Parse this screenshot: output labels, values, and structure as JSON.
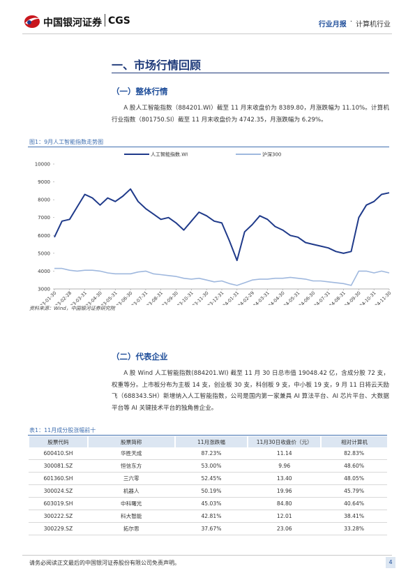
{
  "header": {
    "logo_cn": "中国银河证券",
    "logo_en": "CGS",
    "report_type": "行业月报",
    "separator": "·",
    "industry": "计算机行业"
  },
  "section_title": "一、市场行情回顾",
  "subsection1": {
    "title": "（一）整体行情",
    "paragraph": "A 股人工智能指数（884201.WI）截至 11 月末收盘价为 8389.80，月涨跌幅为 11.10%。计算机行业指数（801750.SI）截至 11 月末收盘价为 4742.35，月涨跌幅为 6.29%。"
  },
  "figure": {
    "caption": "图1：9月人工智能指数走势图",
    "source": "资料来源：Wind，中国银河证券研究院"
  },
  "chart_data": {
    "type": "line",
    "categories": [
      "2023-01-30",
      null,
      "2023-02-28",
      null,
      "2023-03-31",
      null,
      "2023-04-30",
      null,
      "2023-05-31",
      null,
      "2023-06-30",
      null,
      "2023-07-31",
      null,
      "2023-08-31",
      null,
      "2023-09-30",
      null,
      "2023-10-31",
      null,
      "2023-11-30",
      null,
      "2023-12-31",
      null,
      "2024-01-31",
      null,
      "2024-02-29",
      null,
      "2024-03-31",
      null,
      "2024-04-30",
      null,
      "2024-05-31",
      null,
      "2024-06-30",
      null,
      "2024-07-31",
      null,
      "2024-08-31",
      null,
      "2024-09-30",
      null,
      "2024-10-31",
      null,
      "2024-11-30"
    ],
    "series": [
      {
        "name": "人工智能指数.WI",
        "color": "#1f3a8a",
        "values": [
          5900,
          6800,
          6900,
          7600,
          8300,
          8100,
          7700,
          8100,
          7900,
          8200,
          8600,
          7900,
          7500,
          7200,
          6900,
          7000,
          6700,
          6300,
          6800,
          7300,
          7100,
          6800,
          6700,
          5700,
          4600,
          6200,
          6600,
          7100,
          6900,
          6500,
          6300,
          6000,
          5900,
          5600,
          5500,
          5400,
          5300,
          5100,
          5000,
          5100,
          7000,
          7700,
          7900,
          8300,
          8390
        ]
      },
      {
        "name": "沪深300",
        "color": "#9fb8de",
        "values": [
          4150,
          4150,
          4050,
          4000,
          4050,
          4050,
          4000,
          3900,
          3850,
          3850,
          3850,
          3950,
          4000,
          3850,
          3800,
          3750,
          3700,
          3600,
          3550,
          3600,
          3500,
          3400,
          3450,
          3300,
          3200,
          3350,
          3500,
          3550,
          3550,
          3600,
          3600,
          3650,
          3600,
          3550,
          3450,
          3450,
          3400,
          3350,
          3300,
          3200,
          4000,
          4000,
          3900,
          4000,
          3900
        ]
      }
    ],
    "ylim": [
      3000,
      10000
    ],
    "yticks": [
      3000,
      4000,
      5000,
      6000,
      7000,
      8000,
      9000,
      10000
    ],
    "legend": "top"
  },
  "subsection2": {
    "title": "（二）代表企业",
    "paragraph": "A 股 Wind 人工智能指数(884201.WI) 截至 11 月 30 日总市值 19048.42 亿，含成分股 72 支，权重等分。上市板分布为主板 14 支，创业板 30 支，科创板 9 支，中小板 19 支，9 月 11 日将云天励飞（688343.SH）新增纳入人工智能指数，公司是国内第一家兼具 AI 算法平台、AI 芯片平台、大数据平台等 AI 关键技术平台的独角兽企业。"
  },
  "table": {
    "caption": "表1：11月成分股涨幅前十",
    "columns": [
      "股票代码",
      "股票简称",
      "11月涨跌幅",
      "11月30日收盘价（元）",
      "相对计算机"
    ],
    "rows": [
      [
        "600410.SH",
        "华胜天成",
        "87.23%",
        "11.14",
        "82.83%"
      ],
      [
        "300081.SZ",
        "恒信东方",
        "53.00%",
        "9.96",
        "48.60%"
      ],
      [
        "601360.SH",
        "三六零",
        "52.45%",
        "13.40",
        "48.05%"
      ],
      [
        "300024.SZ",
        "机器人",
        "50.19%",
        "19.96",
        "45.79%"
      ],
      [
        "603019.SH",
        "中科曙光",
        "45.03%",
        "84.80",
        "40.64%"
      ],
      [
        "300222.SZ",
        "科大智能",
        "42.81%",
        "12.01",
        "38.41%"
      ],
      [
        "300229.SZ",
        "拓尔思",
        "37.67%",
        "23.06",
        "33.28%"
      ]
    ]
  },
  "footer": {
    "disclaimer": "请务必阅读正文最后的中国银河证券股份有限公司免责声明。",
    "page": "4"
  }
}
